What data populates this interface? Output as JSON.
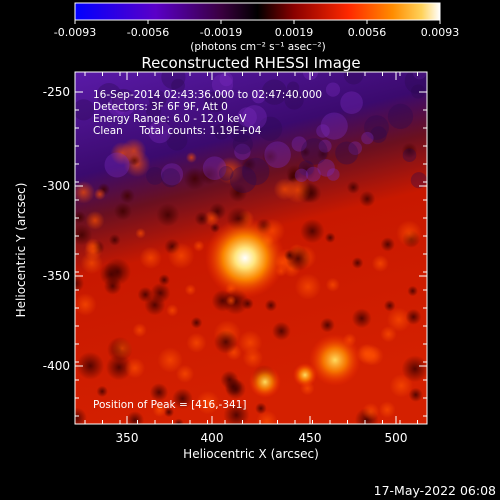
{
  "colorbar": {
    "tick_labels": [
      "-0.0093",
      "-0.0056",
      "-0.0019",
      "0.0019",
      "0.0056",
      "0.0093"
    ],
    "unit_label": "(photons cm⁻² s⁻¹ asec⁻²)",
    "stops": [
      "#0000ff",
      "#5a00c8",
      "#3a0040",
      "#000000",
      "#8a0000",
      "#ff2800",
      "#ff8c00",
      "#ffd25a",
      "#ffffff"
    ]
  },
  "plot": {
    "title": "Reconstructed RHESSI Image",
    "xlabel": "Heliocentric X (arcsec)",
    "ylabel": "Heliocentric Y (arcsec)",
    "x_ticks": [
      "350",
      "400",
      "450",
      "500"
    ],
    "y_ticks": [
      "-250",
      "-300",
      "-350",
      "-400"
    ],
    "info_lines": [
      "16-Sep-2014 02:43:36.000 to 02:47:40.000",
      "Detectors: 3F 6F 9F, Att 0",
      "Energy Range: 6.0 - 12.0 keV",
      "Clean     Total counts: 1.19E+04"
    ],
    "peak_label": "Position of Peak = [416,-341]"
  },
  "footer": {
    "date": "17-May-2022 06:08"
  }
}
